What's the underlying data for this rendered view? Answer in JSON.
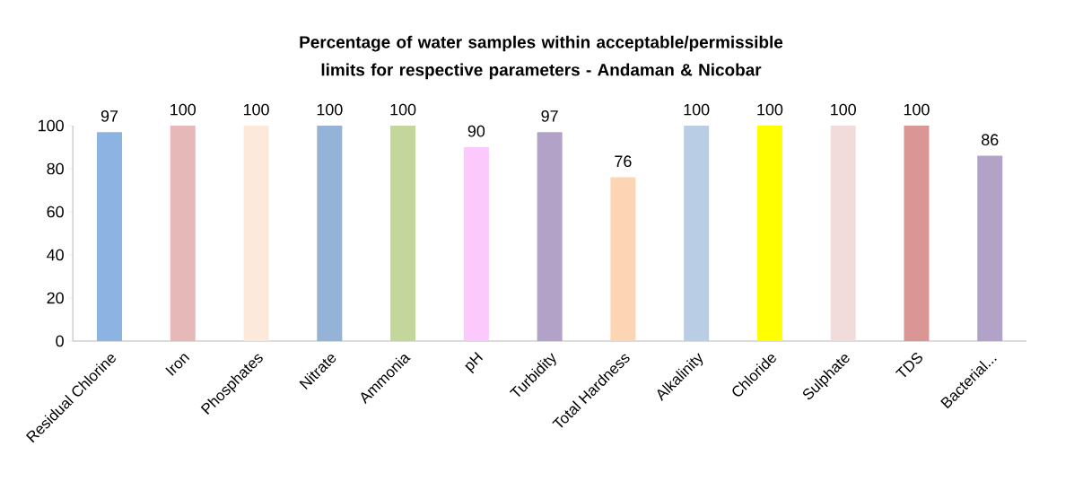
{
  "chart_data": {
    "type": "bar",
    "title": "Percentage of water samples within acceptable/permissible limits for respective parameters - Andaman & Nicobar",
    "categories": [
      "Residual Chlorine",
      "Iron",
      "Phosphates",
      "Nitrate",
      "Ammonia",
      "pH",
      "Turbidity",
      "Total Hardness",
      "Alkalinity",
      "Chloride",
      "Sulphate",
      "TDS",
      "Bacterial..."
    ],
    "values": [
      97,
      100,
      100,
      100,
      100,
      90,
      97,
      76,
      100,
      100,
      100,
      100,
      86
    ],
    "colors": [
      "#8db3e2",
      "#e6b9b8",
      "#fde9d9",
      "#95b3d7",
      "#c3d69b",
      "#fcc9fc",
      "#b3a2c7",
      "#fcd5b5",
      "#b9cde5",
      "#ffff00",
      "#f2dcdb",
      "#d99694",
      "#b3a2c7"
    ],
    "ylim": [
      0,
      100
    ],
    "yticks": [
      0,
      20,
      40,
      60,
      80,
      100
    ],
    "data_labels": true,
    "grid": false
  }
}
